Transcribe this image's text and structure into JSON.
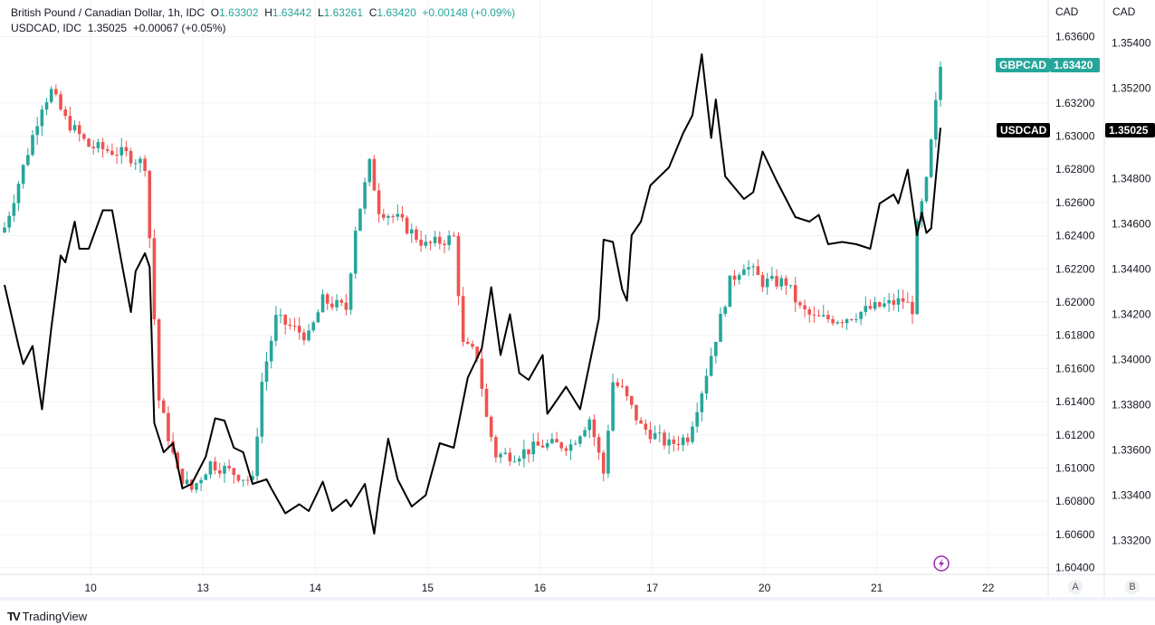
{
  "legend": {
    "main_title": "British Pound / Canadian Dollar, 1h, IDC",
    "o_label": "O",
    "o": "1.63302",
    "h_label": "H",
    "h": "1.63442",
    "l_label": "L",
    "l": "1.63261",
    "c_label": "C",
    "c": "1.63420",
    "change": "+0.00148 (+0.09%)",
    "compare_title": "USDCAD, IDC",
    "compare_value": "1.35025",
    "compare_change": "+0.00067 (+0.05%)"
  },
  "axes": {
    "left_currency": "CAD",
    "right_currency": "CAD",
    "scale_a": "A",
    "scale_b": "B"
  },
  "tags": {
    "gbpcad_label": "GBPCAD",
    "gbpcad_value": "1.63420",
    "usdcad_label": "USDCAD",
    "usdcad_value": "1.35025"
  },
  "colors": {
    "up": "#26a69a",
    "down": "#ef5350",
    "line": "#000000",
    "accent": "#9c27b0"
  },
  "brand": "TradingView",
  "chart_data": {
    "type": "candlestick+line",
    "title": "British Pound / Canadian Dollar, 1h, IDC",
    "x_tick_labels": [
      "10",
      "13",
      "14",
      "15",
      "16",
      "17",
      "20",
      "21",
      "22"
    ],
    "x_tick_hours": [
      18.4,
      42.4,
      66.4,
      90.4,
      114.4,
      138.4,
      162.4,
      186.4,
      210.2
    ],
    "gbpcad_axis": {
      "ticks": [
        "1.63600",
        "1.63200",
        "1.63000",
        "1.62800",
        "1.62600",
        "1.62400",
        "1.62200",
        "1.62000",
        "1.61800",
        "1.61600",
        "1.61400",
        "1.61200",
        "1.61000",
        "1.60800",
        "1.60600",
        "1.60400"
      ],
      "ylim": [
        1.6036,
        1.6382
      ]
    },
    "usdcad_axis": {
      "ticks": [
        "1.35400",
        "1.35200",
        "1.34800",
        "1.34600",
        "1.34400",
        "1.34200",
        "1.34000",
        "1.33800",
        "1.33600",
        "1.33400",
        "1.33200"
      ],
      "ylim": [
        1.3305,
        1.3559
      ]
    },
    "gbpcad_close_keypoints": [
      [
        0,
        1.6245
      ],
      [
        3,
        1.6272
      ],
      [
        8,
        1.6319
      ],
      [
        10,
        1.6327
      ],
      [
        13,
        1.631
      ],
      [
        18,
        1.6294
      ],
      [
        26,
        1.6289
      ],
      [
        30,
        1.6283
      ],
      [
        31,
        1.6239
      ],
      [
        33,
        1.6141
      ],
      [
        37,
        1.6097
      ],
      [
        40,
        1.6087
      ],
      [
        44,
        1.6103
      ],
      [
        49,
        1.6097
      ],
      [
        53,
        1.6092
      ],
      [
        55,
        1.6152
      ],
      [
        58,
        1.619
      ],
      [
        65,
        1.6179
      ],
      [
        68,
        1.6201
      ],
      [
        73,
        1.6196
      ],
      [
        75,
        1.6245
      ],
      [
        78,
        1.6283
      ],
      [
        80,
        1.6256
      ],
      [
        84,
        1.625
      ],
      [
        90,
        1.6234
      ],
      [
        96,
        1.6239
      ],
      [
        98,
        1.6174
      ],
      [
        101,
        1.6168
      ],
      [
        103,
        1.613
      ],
      [
        105,
        1.6108
      ],
      [
        109,
        1.6108
      ],
      [
        115,
        1.6114
      ],
      [
        121,
        1.6114
      ],
      [
        125,
        1.613
      ],
      [
        128,
        1.6097
      ],
      [
        130,
        1.6152
      ],
      [
        132,
        1.6147
      ],
      [
        136,
        1.6125
      ],
      [
        142,
        1.6114
      ],
      [
        146,
        1.6119
      ],
      [
        149,
        1.6147
      ],
      [
        152,
        1.6179
      ],
      [
        155,
        1.6212
      ],
      [
        158,
        1.6223
      ],
      [
        160,
        1.6218
      ],
      [
        162,
        1.6212
      ],
      [
        167,
        1.6212
      ],
      [
        170,
        1.6196
      ],
      [
        173,
        1.619
      ],
      [
        179,
        1.619
      ],
      [
        185,
        1.6196
      ],
      [
        192,
        1.6201
      ],
      [
        194,
        1.6196
      ],
      [
        195,
        1.6245
      ],
      [
        197,
        1.6272
      ],
      [
        199,
        1.6319
      ],
      [
        200,
        1.6342
      ]
    ],
    "usdcad_close_keypoints": [
      [
        0,
        1.3433
      ],
      [
        3,
        1.3406
      ],
      [
        4,
        1.3398
      ],
      [
        6,
        1.3406
      ],
      [
        8,
        1.3378
      ],
      [
        10,
        1.3414
      ],
      [
        12,
        1.3446
      ],
      [
        13,
        1.3443
      ],
      [
        15,
        1.3461
      ],
      [
        16,
        1.3449
      ],
      [
        18,
        1.3449
      ],
      [
        21,
        1.3466
      ],
      [
        23,
        1.3466
      ],
      [
        25,
        1.3443
      ],
      [
        27,
        1.3421
      ],
      [
        28,
        1.3439
      ],
      [
        30,
        1.3447
      ],
      [
        31,
        1.3441
      ],
      [
        32,
        1.3372
      ],
      [
        34,
        1.3359
      ],
      [
        36,
        1.3363
      ],
      [
        38,
        1.3343
      ],
      [
        40,
        1.3345
      ],
      [
        43,
        1.3357
      ],
      [
        45,
        1.3374
      ],
      [
        47,
        1.3373
      ],
      [
        49,
        1.3361
      ],
      [
        51,
        1.3359
      ],
      [
        53,
        1.3345
      ],
      [
        56,
        1.3347
      ],
      [
        57,
        1.3343
      ],
      [
        60,
        1.3332
      ],
      [
        63,
        1.3336
      ],
      [
        65,
        1.3333
      ],
      [
        68,
        1.3346
      ],
      [
        70,
        1.3333
      ],
      [
        73,
        1.3338
      ],
      [
        74,
        1.3335
      ],
      [
        77,
        1.3345
      ],
      [
        79,
        1.3323
      ],
      [
        80,
        1.3339
      ],
      [
        82,
        1.3365
      ],
      [
        84,
        1.3347
      ],
      [
        87,
        1.3335
      ],
      [
        90,
        1.334
      ],
      [
        93,
        1.3363
      ],
      [
        96,
        1.3361
      ],
      [
        99,
        1.3392
      ],
      [
        102,
        1.3405
      ],
      [
        104,
        1.3432
      ],
      [
        106,
        1.3402
      ],
      [
        108,
        1.342
      ],
      [
        110,
        1.3394
      ],
      [
        112,
        1.3391
      ],
      [
        115,
        1.3402
      ],
      [
        116,
        1.3376
      ],
      [
        118,
        1.3382
      ],
      [
        120,
        1.3388
      ],
      [
        123,
        1.3378
      ],
      [
        127,
        1.3418
      ],
      [
        128,
        1.3453
      ],
      [
        130,
        1.3452
      ],
      [
        132,
        1.3431
      ],
      [
        133,
        1.3426
      ],
      [
        134,
        1.3455
      ],
      [
        136,
        1.3461
      ],
      [
        138,
        1.3477
      ],
      [
        142,
        1.3485
      ],
      [
        145,
        1.35
      ],
      [
        147,
        1.3508
      ],
      [
        149,
        1.3535
      ],
      [
        151,
        1.3498
      ],
      [
        152,
        1.3515
      ],
      [
        154,
        1.3481
      ],
      [
        158,
        1.3471
      ],
      [
        160,
        1.3474
      ],
      [
        162,
        1.3492
      ],
      [
        165,
        1.3479
      ],
      [
        169,
        1.3463
      ],
      [
        172,
        1.3461
      ],
      [
        174,
        1.3464
      ],
      [
        176,
        1.3451
      ],
      [
        179,
        1.3452
      ],
      [
        182,
        1.3451
      ],
      [
        185,
        1.3449
      ],
      [
        187,
        1.3469
      ],
      [
        190,
        1.3473
      ],
      [
        191,
        1.3469
      ],
      [
        193,
        1.3484
      ],
      [
        195,
        1.3455
      ],
      [
        196,
        1.3465
      ],
      [
        197,
        1.3456
      ],
      [
        198,
        1.3458
      ],
      [
        200,
        1.35025
      ]
    ]
  }
}
